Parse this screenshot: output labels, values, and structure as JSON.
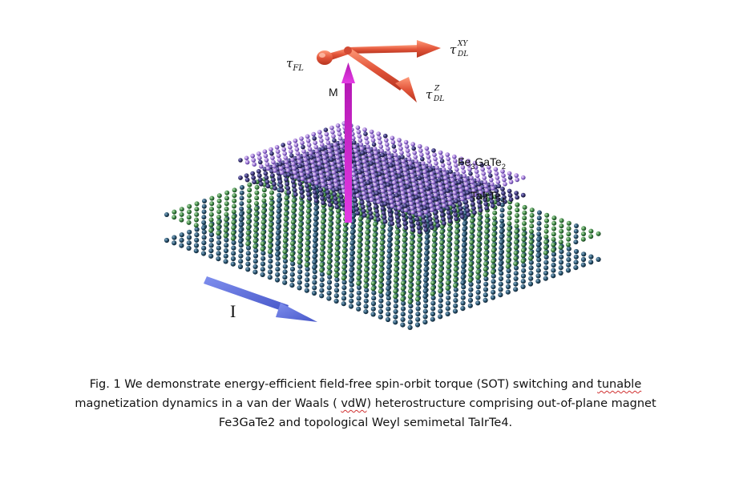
{
  "figure": {
    "labels": {
      "tau_fl": "τ",
      "tau_fl_sub": "FL",
      "tau_dl_xy": "τ",
      "tau_dl_xy_sup": "XY",
      "tau_dl_xy_sub": "DL",
      "tau_dl_z": "τ",
      "tau_dl_z_sup": "Z",
      "tau_dl_z_sub": "DL",
      "magnetization": "M",
      "current": "I",
      "top_layer": "Fe",
      "top_layer_sub1": "3",
      "top_layer_mid": "GaTe",
      "top_layer_sub2": "2",
      "bottom_layer": "TaIrTe",
      "bottom_layer_sub": "4"
    },
    "colors": {
      "top_lattice": "#b58be0",
      "top_lattice_alt": "#3b2f8a",
      "bottom_lattice": "#3f7f45",
      "bottom_lattice_alt": "#1f3f5f",
      "magnetization_arrow": "#c81ec8",
      "torque_arrow": "#e05a3a",
      "current_arrow": "#5a6fd8"
    }
  },
  "caption": {
    "line1_a": "Fig. 1 We demonstrate energy-efficient field-free spin-orbit torque (SOT) switching and ",
    "line1_b": "tunable",
    "line2_a": "magnetization dynamics in a van der Waals ( ",
    "line2_b": "vdW",
    "line2_c": ") heterostructure comprising out-of-plane magnet",
    "line3": "Fe3GaTe2 and topological Weyl semimetal TaIrTe4."
  }
}
